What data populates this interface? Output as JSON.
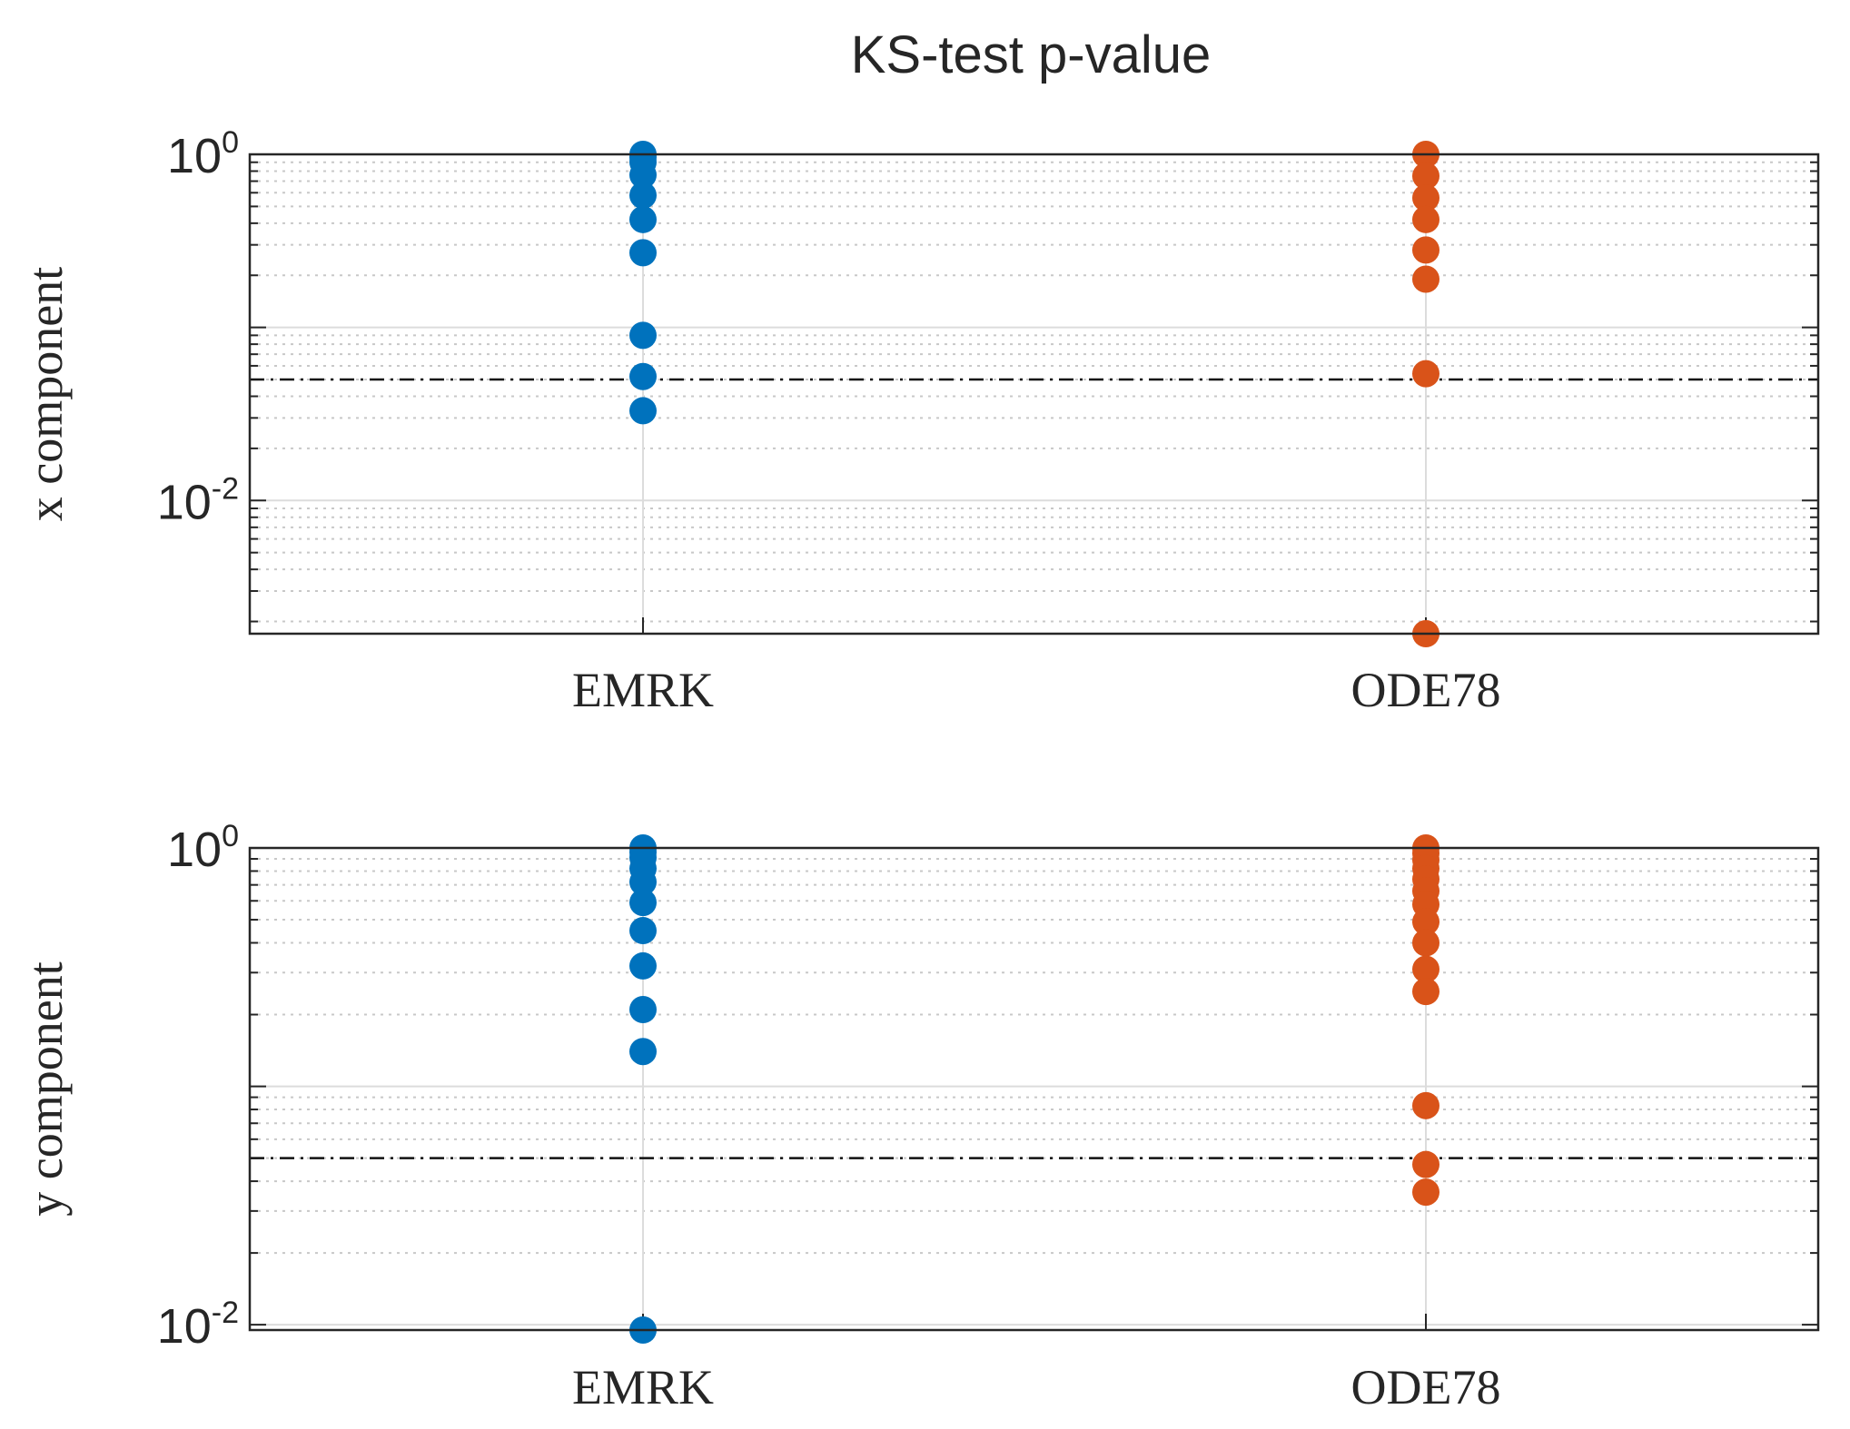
{
  "figure_title": "KS-test p-value",
  "chart_data": [
    {
      "type": "scatter",
      "title": "KS-test p-value",
      "xlabel": "",
      "ylabel": "x component",
      "yscale": "log",
      "ylim": [
        0.0017,
        1.0
      ],
      "categories": [
        "EMRK",
        "ODE78"
      ],
      "ytick_labels": [
        {
          "base": "10",
          "exp": "0"
        },
        {
          "base": "10",
          "exp": "-2"
        }
      ],
      "threshold": 0.05,
      "grid": true,
      "series": [
        {
          "name": "EMRK",
          "color": "#0072BD",
          "values": [
            1.0,
            0.96,
            0.9,
            0.76,
            0.58,
            0.42,
            0.27,
            0.09,
            0.052,
            0.033
          ]
        },
        {
          "name": "ODE78",
          "color": "#D95319",
          "values": [
            1.0,
            0.75,
            0.56,
            0.42,
            0.28,
            0.19,
            0.054,
            0.0017
          ]
        }
      ]
    },
    {
      "type": "scatter",
      "title": "",
      "xlabel": "",
      "ylabel": "y component",
      "yscale": "log",
      "ylim": [
        0.0095,
        1.0
      ],
      "categories": [
        "EMRK",
        "ODE78"
      ],
      "ytick_labels": [
        {
          "base": "10",
          "exp": "0"
        },
        {
          "base": "10",
          "exp": "-2"
        }
      ],
      "threshold": 0.05,
      "grid": true,
      "series": [
        {
          "name": "EMRK",
          "color": "#0072BD",
          "values": [
            1.0,
            0.96,
            0.91,
            0.82,
            0.72,
            0.59,
            0.45,
            0.32,
            0.21,
            0.14,
            0.0095
          ]
        },
        {
          "name": "ODE78",
          "color": "#D95319",
          "values": [
            1.0,
            0.95,
            0.89,
            0.82,
            0.74,
            0.66,
            0.58,
            0.49,
            0.4,
            0.31,
            0.25,
            0.083,
            0.047,
            0.036
          ]
        }
      ]
    }
  ]
}
